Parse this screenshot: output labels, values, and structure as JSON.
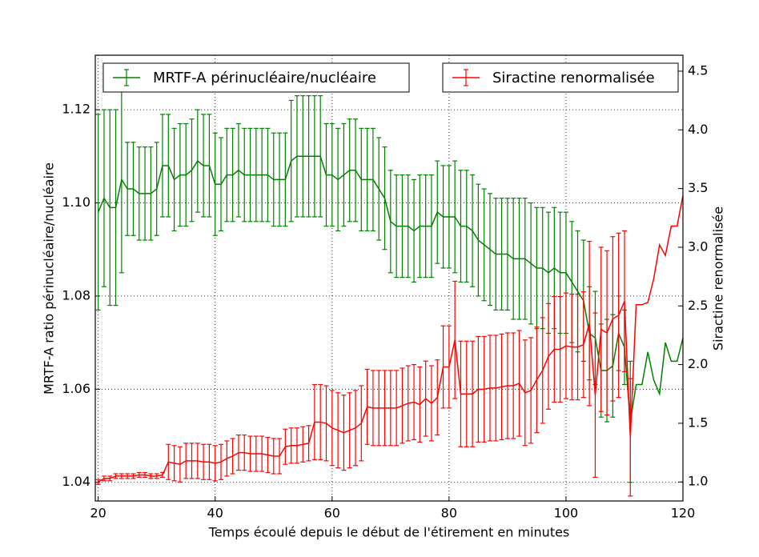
{
  "chart_data": {
    "type": "errorbar-line",
    "xlabel": "Temps écoulé depuis le début de l'étirement en minutes",
    "ylabel": "MRTF-A ratio périnucléaire/nucléaire",
    "y2label": "Siractine renormalisée",
    "x": [
      20,
      21,
      22,
      23,
      24,
      25,
      26,
      27,
      28,
      29,
      30,
      31,
      32,
      33,
      34,
      35,
      36,
      37,
      38,
      39,
      40,
      41,
      42,
      43,
      44,
      45,
      46,
      47,
      48,
      49,
      50,
      51,
      52,
      53,
      54,
      55,
      56,
      57,
      58,
      59,
      60,
      61,
      62,
      63,
      64,
      65,
      66,
      67,
      68,
      69,
      70,
      71,
      72,
      73,
      74,
      75,
      76,
      77,
      78,
      79,
      80,
      81,
      82,
      83,
      84,
      85,
      86,
      87,
      88,
      89,
      90,
      91,
      92,
      93,
      94,
      95,
      96,
      97,
      98,
      99,
      100,
      101,
      102,
      103,
      104,
      105,
      106,
      107,
      108,
      109,
      110,
      111,
      112,
      113,
      114,
      115,
      116,
      117,
      118,
      119,
      120
    ],
    "xlim": [
      19.5,
      120
    ],
    "xticks": [
      20,
      40,
      60,
      80,
      100,
      120
    ],
    "ylim": [
      1.036,
      1.1317
    ],
    "yticks": [
      1.04,
      1.06,
      1.08,
      {
        "value": 1.1,
        "label": "1.10"
      },
      1.12
    ],
    "y2lim": [
      0.838,
      4.636
    ],
    "y2ticks": [
      {
        "value": 1,
        "label": "1.0"
      },
      1.5,
      {
        "value": 2,
        "label": "2.0"
      },
      2.5,
      {
        "value": 3,
        "label": "3.0"
      },
      3.5,
      {
        "value": 4,
        "label": "4.0"
      },
      4.5
    ],
    "grid": true,
    "series": [
      {
        "name": "MRTF-A périnucléaire/nucléaire",
        "color": "#008000",
        "axis": "y",
        "legend": "upper left",
        "values": [
          1.098,
          1.101,
          1.099,
          1.099,
          1.105,
          1.103,
          1.103,
          1.102,
          1.102,
          1.102,
          1.103,
          1.108,
          1.108,
          1.105,
          1.106,
          1.106,
          1.107,
          1.109,
          1.108,
          1.108,
          1.104,
          1.104,
          1.106,
          1.106,
          1.107,
          1.106,
          1.106,
          1.106,
          1.106,
          1.106,
          1.105,
          1.105,
          1.105,
          1.109,
          1.11,
          1.11,
          1.11,
          1.11,
          1.11,
          1.106,
          1.106,
          1.105,
          1.106,
          1.107,
          1.107,
          1.105,
          1.105,
          1.105,
          1.103,
          1.101,
          1.096,
          1.095,
          1.095,
          1.095,
          1.094,
          1.095,
          1.095,
          1.095,
          1.098,
          1.097,
          1.097,
          1.097,
          1.095,
          1.095,
          1.094,
          1.092,
          1.091,
          1.09,
          1.089,
          1.089,
          1.089,
          1.088,
          1.088,
          1.088,
          1.087,
          1.086,
          1.086,
          1.085,
          1.086,
          1.085,
          1.085,
          1.083,
          1.081,
          1.079,
          1.072,
          1.071,
          1.064,
          1.064,
          1.065,
          1.072,
          1.069,
          1.053,
          1.061,
          1.061,
          1.068,
          1.062,
          1.059,
          1.07,
          1.066,
          1.066,
          1.071
        ],
        "errors": [
          0.021,
          0.019,
          0.021,
          0.021,
          0.02,
          0.01,
          0.01,
          0.01,
          0.01,
          0.01,
          0.01,
          0.011,
          0.011,
          0.011,
          0.011,
          0.011,
          0.011,
          0.011,
          0.011,
          0.011,
          0.011,
          0.01,
          0.01,
          0.01,
          0.01,
          0.01,
          0.01,
          0.01,
          0.01,
          0.01,
          0.01,
          0.01,
          0.01,
          0.013,
          0.013,
          0.013,
          0.013,
          0.013,
          0.013,
          0.011,
          0.011,
          0.011,
          0.011,
          0.011,
          0.011,
          0.011,
          0.011,
          0.011,
          0.011,
          0.011,
          0.011,
          0.011,
          0.011,
          0.011,
          0.011,
          0.011,
          0.011,
          0.011,
          0.011,
          0.011,
          0.011,
          0.012,
          0.012,
          0.012,
          0.012,
          0.012,
          0.012,
          0.012,
          0.012,
          0.012,
          0.012,
          0.013,
          0.013,
          0.013,
          0.013,
          0.013,
          0.013,
          0.013,
          0.013,
          0.013,
          0.013,
          0.013,
          0.013,
          0.013,
          0.01,
          0.01,
          0.01,
          0.011,
          0.011,
          0.008,
          0.008,
          0.013,
          null,
          null,
          null,
          null,
          null,
          null,
          null,
          null,
          null
        ]
      },
      {
        "name": "Siractine renormalisée",
        "color": "#ff0000",
        "axis": "y2",
        "legend": "upper right",
        "values": [
          1.0,
          1.03,
          1.03,
          1.05,
          1.05,
          1.05,
          1.05,
          1.06,
          1.06,
          1.05,
          1.05,
          1.06,
          1.17,
          1.16,
          1.15,
          1.18,
          1.18,
          1.18,
          1.17,
          1.17,
          1.16,
          1.17,
          1.2,
          1.22,
          1.25,
          1.25,
          1.24,
          1.24,
          1.24,
          1.23,
          1.22,
          1.22,
          1.3,
          1.31,
          1.31,
          1.32,
          1.33,
          1.51,
          1.51,
          1.5,
          1.46,
          1.44,
          1.42,
          1.44,
          1.46,
          1.5,
          1.64,
          1.63,
          1.63,
          1.63,
          1.63,
          1.63,
          1.65,
          1.67,
          1.68,
          1.66,
          1.71,
          1.67,
          1.72,
          1.98,
          1.98,
          2.21,
          1.75,
          1.75,
          1.75,
          1.79,
          1.79,
          1.8,
          1.8,
          1.81,
          1.82,
          1.82,
          1.84,
          1.76,
          1.78,
          1.87,
          1.95,
          2.07,
          2.13,
          2.13,
          2.16,
          2.15,
          2.15,
          2.17,
          2.35,
          1.74,
          2.3,
          2.27,
          2.39,
          2.42,
          2.54,
          1.38,
          2.51,
          2.51,
          2.53,
          2.73,
          3.02,
          2.93,
          3.18,
          3.18,
          3.44
        ],
        "errors": [
          0.02,
          0.02,
          0.02,
          0.02,
          0.02,
          0.02,
          0.02,
          0.02,
          0.02,
          0.02,
          0.02,
          0.02,
          0.15,
          0.15,
          0.15,
          0.15,
          0.15,
          0.15,
          0.15,
          0.15,
          0.15,
          0.15,
          0.15,
          0.15,
          0.15,
          0.15,
          0.15,
          0.15,
          0.15,
          0.15,
          0.15,
          0.15,
          0.15,
          0.15,
          0.15,
          0.15,
          0.15,
          0.32,
          0.32,
          0.32,
          0.32,
          0.32,
          0.32,
          0.32,
          0.32,
          0.32,
          0.32,
          0.32,
          0.32,
          0.32,
          0.32,
          0.32,
          0.32,
          0.32,
          0.32,
          0.32,
          0.32,
          0.32,
          0.32,
          0.35,
          0.35,
          0.5,
          0.45,
          0.45,
          0.45,
          0.45,
          0.45,
          0.45,
          0.45,
          0.45,
          0.45,
          0.45,
          0.45,
          0.45,
          0.45,
          0.45,
          0.45,
          0.45,
          0.45,
          0.45,
          0.45,
          0.45,
          0.45,
          0.45,
          0.7,
          0.7,
          0.7,
          0.7,
          0.7,
          0.7,
          0.6,
          0.5,
          null,
          null,
          null,
          null,
          null,
          null,
          null,
          null,
          null
        ]
      }
    ]
  }
}
